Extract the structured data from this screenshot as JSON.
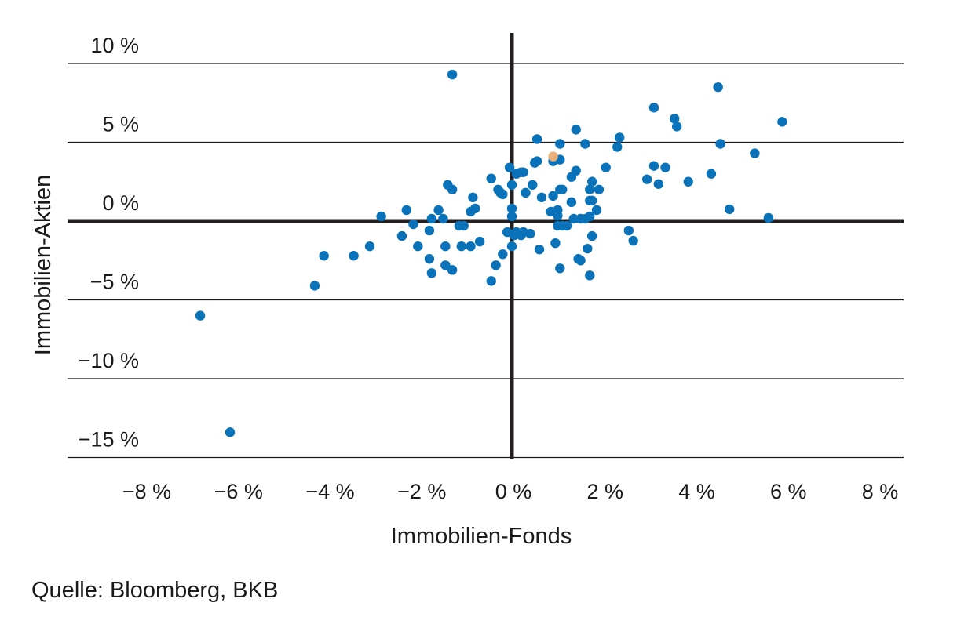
{
  "chart_data": {
    "type": "scatter",
    "xlabel": "Immobilien-Fonds",
    "ylabel": "Immobilien-Aktien",
    "xlim": [
      -10,
      9
    ],
    "ylim": [
      -15,
      10
    ],
    "x_ticks": [
      -8,
      -6,
      -4,
      -2,
      0,
      2,
      4,
      6,
      8
    ],
    "x_tick_labels": [
      "−8 %",
      "−6 %",
      "−4 %",
      "−2 %",
      "0 %",
      "2 %",
      "4 %",
      "6 %",
      "8 %"
    ],
    "y_ticks": [
      10,
      5,
      0,
      -5,
      -10,
      -15
    ],
    "y_tick_labels": [
      "10 %",
      "5 %",
      "0 %",
      "−5 %",
      "−10 %",
      "−15 %"
    ],
    "grid": "horizontal",
    "colors": {
      "primary": "#0a72b8",
      "highlight": "#e8b07a",
      "axis": "#231f20",
      "grid": "#1a1a1a"
    },
    "series": [
      {
        "color": "#0a72b8",
        "points": [
          [
            -1.3,
            9.3
          ],
          [
            4.5,
            8.5
          ],
          [
            3.1,
            7.2
          ],
          [
            3.55,
            6.5
          ],
          [
            3.6,
            6.0
          ],
          [
            5.9,
            6.3
          ],
          [
            1.4,
            5.8
          ],
          [
            2.35,
            5.3
          ],
          [
            0.55,
            5.2
          ],
          [
            1.05,
            4.9
          ],
          [
            1.6,
            4.9
          ],
          [
            2.3,
            4.7
          ],
          [
            4.55,
            4.9
          ],
          [
            5.3,
            4.3
          ],
          [
            1.05,
            3.9
          ],
          [
            0.5,
            3.7
          ],
          [
            0.55,
            3.8
          ],
          [
            0.9,
            3.8
          ],
          [
            -0.05,
            3.4
          ],
          [
            0.2,
            3.1
          ],
          [
            0.25,
            3.1
          ],
          [
            0.1,
            3.0
          ],
          [
            1.4,
            3.2
          ],
          [
            2.05,
            3.4
          ],
          [
            3.1,
            3.5
          ],
          [
            3.35,
            3.4
          ],
          [
            4.35,
            3.0
          ],
          [
            1.3,
            2.8
          ],
          [
            -0.45,
            2.7
          ],
          [
            2.95,
            2.65
          ],
          [
            3.2,
            2.35
          ],
          [
            3.85,
            2.5
          ],
          [
            -1.4,
            2.3
          ],
          [
            0.0,
            2.3
          ],
          [
            0.45,
            2.3
          ],
          [
            1.75,
            2.5
          ],
          [
            -1.3,
            2.0
          ],
          [
            -0.3,
            2.0
          ],
          [
            -0.25,
            1.8
          ],
          [
            0.3,
            1.8
          ],
          [
            1.05,
            2.0
          ],
          [
            1.1,
            2.0
          ],
          [
            1.7,
            2.0
          ],
          [
            1.9,
            2.0
          ],
          [
            -0.85,
            1.5
          ],
          [
            -0.2,
            1.7
          ],
          [
            0.65,
            1.5
          ],
          [
            0.9,
            1.6
          ],
          [
            1.3,
            1.2
          ],
          [
            1.7,
            1.3
          ],
          [
            1.75,
            1.3
          ],
          [
            -2.3,
            0.7
          ],
          [
            -0.8,
            0.8
          ],
          [
            -0.9,
            0.6
          ],
          [
            0.0,
            0.8
          ],
          [
            0.85,
            0.6
          ],
          [
            1.0,
            0.7
          ],
          [
            1.85,
            0.7
          ],
          [
            4.75,
            0.75
          ],
          [
            -1.6,
            0.7
          ],
          [
            -2.85,
            0.3
          ],
          [
            -1.75,
            0.15
          ],
          [
            -1.5,
            0.15
          ],
          [
            0.0,
            0.3
          ],
          [
            1.0,
            0.35
          ],
          [
            1.35,
            0.15
          ],
          [
            1.5,
            0.15
          ],
          [
            1.6,
            0.15
          ],
          [
            1.7,
            0.3
          ],
          [
            5.6,
            0.2
          ],
          [
            -2.15,
            -0.2
          ],
          [
            -1.15,
            -0.3
          ],
          [
            -1.05,
            -0.3
          ],
          [
            1.0,
            -0.3
          ],
          [
            1.1,
            -0.3
          ],
          [
            1.2,
            -0.3
          ],
          [
            -1.8,
            -0.6
          ],
          [
            -0.1,
            -0.7
          ],
          [
            0.1,
            -0.7
          ],
          [
            0.25,
            -0.7
          ],
          [
            0.4,
            -0.8
          ],
          [
            2.55,
            -0.6
          ],
          [
            -2.4,
            -0.95
          ],
          [
            -0.7,
            -1.3
          ],
          [
            0.05,
            -0.9
          ],
          [
            0.2,
            -0.9
          ],
          [
            0.95,
            -1.4
          ],
          [
            1.75,
            -0.95
          ],
          [
            2.65,
            -1.25
          ],
          [
            -3.1,
            -1.6
          ],
          [
            -2.05,
            -1.6
          ],
          [
            -1.45,
            -1.6
          ],
          [
            -1.1,
            -1.6
          ],
          [
            -0.9,
            -1.6
          ],
          [
            0.0,
            -1.6
          ],
          [
            0.6,
            -1.8
          ],
          [
            1.65,
            -1.75
          ],
          [
            -4.1,
            -2.2
          ],
          [
            -3.45,
            -2.2
          ],
          [
            -0.2,
            -2.1
          ],
          [
            -1.8,
            -2.4
          ],
          [
            1.45,
            -2.4
          ],
          [
            1.5,
            -2.5
          ],
          [
            -1.45,
            -2.8
          ],
          [
            -0.35,
            -2.8
          ],
          [
            -1.3,
            -3.1
          ],
          [
            1.05,
            -3.0
          ],
          [
            -1.75,
            -3.3
          ],
          [
            1.7,
            -3.45
          ],
          [
            -0.45,
            -3.8
          ],
          [
            -4.3,
            -4.1
          ],
          [
            -6.8,
            -6.0
          ],
          [
            -6.15,
            -13.4
          ]
        ]
      },
      {
        "color": "#e8b07a",
        "points": [
          [
            0.9,
            4.1
          ]
        ]
      }
    ],
    "source": "Quelle: Bloomberg, BKB"
  }
}
